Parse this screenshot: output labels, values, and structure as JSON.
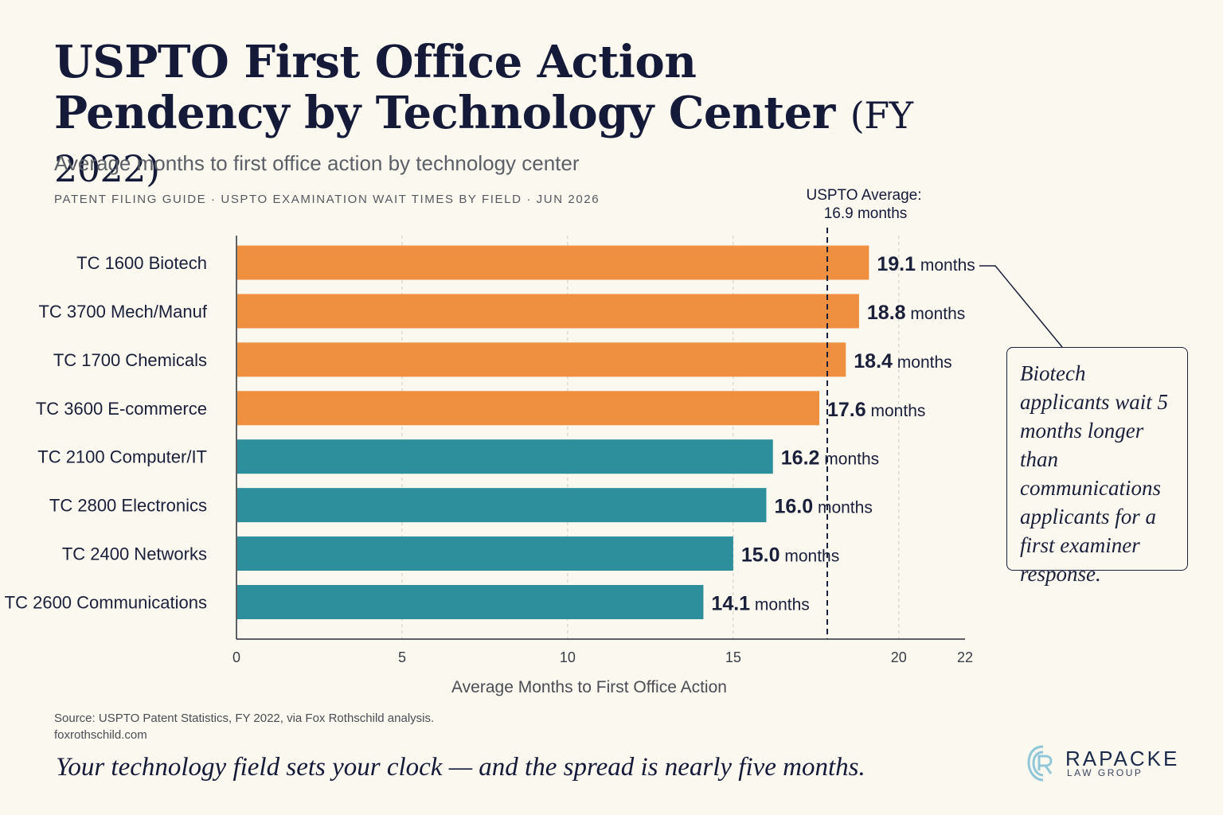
{
  "header": {
    "title_main": "USPTO First Office Action Pendency by Technology Center",
    "title_year": "(FY 2022)",
    "subtitle": "Average months to first office action by technology center",
    "kicker": "PATENT FILING GUIDE  ·  USPTO EXAMINATION WAIT TIMES BY FIELD  · JUN 2026"
  },
  "chart_data": {
    "type": "bar",
    "orientation": "horizontal",
    "categories": [
      "TC 1600 Biotech",
      "TC 3700 Mech/Manuf",
      "TC 1700 Chemicals",
      "TC 3600 E-commerce",
      "TC 2100 Computer/IT",
      "TC 2800 Electronics",
      "TC 2400 Networks",
      "TC 2600 Communications"
    ],
    "values": [
      19.1,
      18.8,
      18.4,
      17.6,
      16.2,
      16.0,
      15.0,
      14.1
    ],
    "value_labels": [
      "19.1",
      "18.8",
      "18.4",
      "17.6",
      "16.2",
      "16.0",
      "15.0",
      "14.1"
    ],
    "value_unit": "months",
    "bar_colors": [
      "#ef8f40",
      "#ef8f40",
      "#ef8f40",
      "#ef8f40",
      "#2e8f9c",
      "#2e8f9c",
      "#2e8f9c",
      "#2e8f9c"
    ],
    "xlabel": "Average Months to First Office Action",
    "xticks": [
      0,
      5,
      10,
      15,
      20,
      22
    ],
    "xlim": [
      0,
      22
    ],
    "grid": "vertical dashed",
    "reference_line": {
      "value": 16.9,
      "label_line1": "USPTO Average:",
      "label_line2": "16.9 months"
    }
  },
  "callout": {
    "text": "Biotech applicants wait 5 months longer than communications applicants for a first examiner response."
  },
  "footer": {
    "source": "Source: USPTO Patent Statistics, FY 2022, via Fox Rothschild analysis.",
    "url": "foxrothschild.com",
    "tagline": "Your technology field sets your clock — and the spread is nearly five months."
  },
  "logo": {
    "name": "RAPACKE",
    "sub": "LAW GROUP"
  },
  "colors": {
    "orange": "#ef8f40",
    "teal": "#2e8f9c",
    "navy": "#141a38",
    "background": "#fbf8f0"
  }
}
